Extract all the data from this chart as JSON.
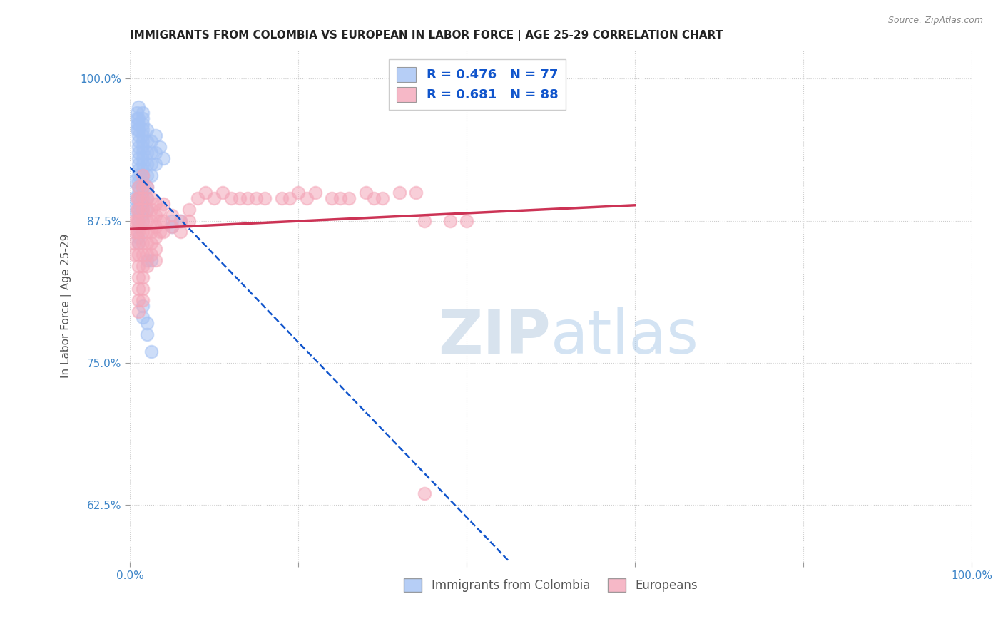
{
  "title": "IMMIGRANTS FROM COLOMBIA VS EUROPEAN IN LABOR FORCE | AGE 25-29 CORRELATION CHART",
  "source": "Source: ZipAtlas.com",
  "ylabel": "In Labor Force | Age 25-29",
  "xlim": [
    0.0,
    1.0
  ],
  "ylim": [
    0.575,
    1.025
  ],
  "xticks": [
    0.0,
    0.2,
    0.4,
    0.6,
    0.8,
    1.0
  ],
  "xticklabels": [
    "0.0%",
    "",
    "",
    "",
    "",
    "100.0%"
  ],
  "yticks": [
    0.625,
    0.75,
    0.875,
    1.0
  ],
  "yticklabels": [
    "62.5%",
    "75.0%",
    "87.5%",
    "100.0%"
  ],
  "colombia_R": 0.476,
  "colombia_N": 77,
  "european_R": 0.681,
  "european_N": 88,
  "colombia_color": "#a4c2f4",
  "european_color": "#f4a7b9",
  "colombia_line_color": "#1155cc",
  "european_line_color": "#cc3355",
  "background_color": "#ffffff",
  "colombia_scatter": [
    [
      0.005,
      0.91
    ],
    [
      0.005,
      0.895
    ],
    [
      0.005,
      0.885
    ],
    [
      0.008,
      0.97
    ],
    [
      0.008,
      0.965
    ],
    [
      0.008,
      0.96
    ],
    [
      0.008,
      0.955
    ],
    [
      0.01,
      0.975
    ],
    [
      0.01,
      0.965
    ],
    [
      0.01,
      0.96
    ],
    [
      0.01,
      0.955
    ],
    [
      0.01,
      0.95
    ],
    [
      0.01,
      0.945
    ],
    [
      0.01,
      0.94
    ],
    [
      0.01,
      0.935
    ],
    [
      0.01,
      0.93
    ],
    [
      0.01,
      0.925
    ],
    [
      0.01,
      0.92
    ],
    [
      0.01,
      0.915
    ],
    [
      0.01,
      0.91
    ],
    [
      0.01,
      0.905
    ],
    [
      0.01,
      0.9
    ],
    [
      0.01,
      0.895
    ],
    [
      0.01,
      0.89
    ],
    [
      0.01,
      0.885
    ],
    [
      0.01,
      0.88
    ],
    [
      0.01,
      0.875
    ],
    [
      0.01,
      0.87
    ],
    [
      0.01,
      0.86
    ],
    [
      0.01,
      0.855
    ],
    [
      0.015,
      0.97
    ],
    [
      0.015,
      0.965
    ],
    [
      0.015,
      0.96
    ],
    [
      0.015,
      0.955
    ],
    [
      0.015,
      0.95
    ],
    [
      0.015,
      0.945
    ],
    [
      0.015,
      0.94
    ],
    [
      0.015,
      0.935
    ],
    [
      0.015,
      0.93
    ],
    [
      0.015,
      0.925
    ],
    [
      0.015,
      0.92
    ],
    [
      0.015,
      0.915
    ],
    [
      0.015,
      0.91
    ],
    [
      0.015,
      0.905
    ],
    [
      0.015,
      0.9
    ],
    [
      0.015,
      0.895
    ],
    [
      0.015,
      0.89
    ],
    [
      0.015,
      0.885
    ],
    [
      0.015,
      0.88
    ],
    [
      0.015,
      0.875
    ],
    [
      0.02,
      0.955
    ],
    [
      0.02,
      0.945
    ],
    [
      0.02,
      0.935
    ],
    [
      0.02,
      0.925
    ],
    [
      0.02,
      0.915
    ],
    [
      0.02,
      0.905
    ],
    [
      0.02,
      0.895
    ],
    [
      0.02,
      0.885
    ],
    [
      0.025,
      0.945
    ],
    [
      0.025,
      0.935
    ],
    [
      0.025,
      0.925
    ],
    [
      0.025,
      0.915
    ],
    [
      0.03,
      0.95
    ],
    [
      0.03,
      0.935
    ],
    [
      0.03,
      0.925
    ],
    [
      0.035,
      0.94
    ],
    [
      0.04,
      0.93
    ],
    [
      0.05,
      0.875
    ],
    [
      0.05,
      0.87
    ],
    [
      0.06,
      0.875
    ],
    [
      0.02,
      0.84
    ],
    [
      0.025,
      0.84
    ],
    [
      0.015,
      0.8
    ],
    [
      0.015,
      0.79
    ],
    [
      0.02,
      0.785
    ],
    [
      0.02,
      0.775
    ],
    [
      0.025,
      0.76
    ]
  ],
  "european_scatter": [
    [
      0.005,
      0.875
    ],
    [
      0.005,
      0.865
    ],
    [
      0.005,
      0.855
    ],
    [
      0.005,
      0.845
    ],
    [
      0.008,
      0.895
    ],
    [
      0.008,
      0.885
    ],
    [
      0.008,
      0.875
    ],
    [
      0.008,
      0.865
    ],
    [
      0.01,
      0.905
    ],
    [
      0.01,
      0.895
    ],
    [
      0.01,
      0.885
    ],
    [
      0.01,
      0.875
    ],
    [
      0.01,
      0.865
    ],
    [
      0.01,
      0.855
    ],
    [
      0.01,
      0.845
    ],
    [
      0.01,
      0.835
    ],
    [
      0.01,
      0.825
    ],
    [
      0.01,
      0.815
    ],
    [
      0.01,
      0.805
    ],
    [
      0.01,
      0.795
    ],
    [
      0.015,
      0.915
    ],
    [
      0.015,
      0.905
    ],
    [
      0.015,
      0.895
    ],
    [
      0.015,
      0.885
    ],
    [
      0.015,
      0.875
    ],
    [
      0.015,
      0.865
    ],
    [
      0.015,
      0.855
    ],
    [
      0.015,
      0.845
    ],
    [
      0.015,
      0.835
    ],
    [
      0.015,
      0.825
    ],
    [
      0.015,
      0.815
    ],
    [
      0.015,
      0.805
    ],
    [
      0.02,
      0.905
    ],
    [
      0.02,
      0.895
    ],
    [
      0.02,
      0.885
    ],
    [
      0.02,
      0.875
    ],
    [
      0.02,
      0.865
    ],
    [
      0.02,
      0.855
    ],
    [
      0.02,
      0.845
    ],
    [
      0.02,
      0.835
    ],
    [
      0.025,
      0.895
    ],
    [
      0.025,
      0.885
    ],
    [
      0.025,
      0.875
    ],
    [
      0.025,
      0.865
    ],
    [
      0.025,
      0.855
    ],
    [
      0.025,
      0.845
    ],
    [
      0.03,
      0.89
    ],
    [
      0.03,
      0.88
    ],
    [
      0.03,
      0.87
    ],
    [
      0.03,
      0.86
    ],
    [
      0.03,
      0.85
    ],
    [
      0.03,
      0.84
    ],
    [
      0.035,
      0.885
    ],
    [
      0.035,
      0.875
    ],
    [
      0.035,
      0.865
    ],
    [
      0.04,
      0.89
    ],
    [
      0.04,
      0.875
    ],
    [
      0.04,
      0.865
    ],
    [
      0.05,
      0.88
    ],
    [
      0.05,
      0.87
    ],
    [
      0.06,
      0.875
    ],
    [
      0.06,
      0.865
    ],
    [
      0.07,
      0.885
    ],
    [
      0.07,
      0.875
    ],
    [
      0.08,
      0.895
    ],
    [
      0.09,
      0.9
    ],
    [
      0.1,
      0.895
    ],
    [
      0.11,
      0.9
    ],
    [
      0.12,
      0.895
    ],
    [
      0.13,
      0.895
    ],
    [
      0.14,
      0.895
    ],
    [
      0.15,
      0.895
    ],
    [
      0.16,
      0.895
    ],
    [
      0.18,
      0.895
    ],
    [
      0.19,
      0.895
    ],
    [
      0.2,
      0.9
    ],
    [
      0.21,
      0.895
    ],
    [
      0.22,
      0.9
    ],
    [
      0.24,
      0.895
    ],
    [
      0.25,
      0.895
    ],
    [
      0.26,
      0.895
    ],
    [
      0.28,
      0.9
    ],
    [
      0.29,
      0.895
    ],
    [
      0.3,
      0.895
    ],
    [
      0.32,
      0.9
    ],
    [
      0.34,
      0.9
    ],
    [
      0.35,
      0.875
    ],
    [
      0.38,
      0.875
    ],
    [
      0.4,
      0.875
    ],
    [
      0.35,
      0.635
    ]
  ]
}
